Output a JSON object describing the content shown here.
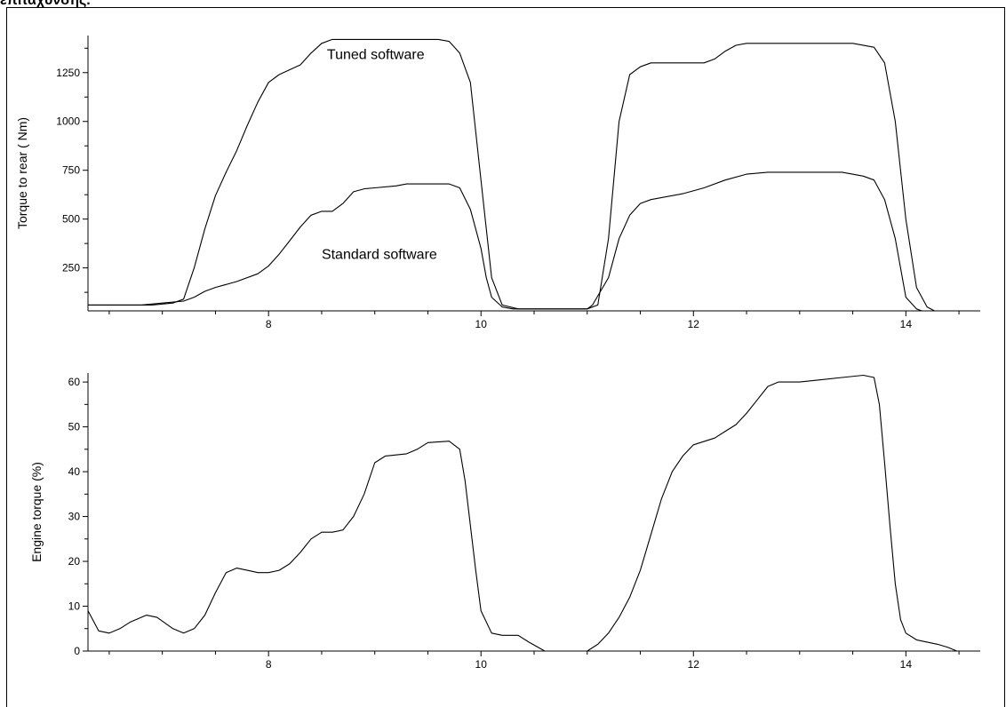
{
  "page": {
    "heading": "επιτάχυνσης."
  },
  "colors": {
    "line": "#000000",
    "axis": "#000000",
    "background": "#ffffff"
  },
  "chart_data": [
    {
      "type": "line",
      "title": "",
      "xlabel": "",
      "ylabel": "Torque to rear ( Nm)",
      "xlim": [
        6.3,
        14.7
      ],
      "ylim": [
        30,
        1440
      ],
      "x_ticks": [
        8,
        10,
        12,
        14
      ],
      "y_ticks": [
        250,
        500,
        750,
        1000,
        1250
      ],
      "grid": false,
      "legend": "none",
      "series": [
        {
          "name": "Tuned software",
          "label_at": [
            8.55,
            1320
          ],
          "points": [
            [
              6.3,
              60
            ],
            [
              6.9,
              60
            ],
            [
              7.1,
              70
            ],
            [
              7.2,
              90
            ],
            [
              7.3,
              250
            ],
            [
              7.4,
              450
            ],
            [
              7.5,
              620
            ],
            [
              7.6,
              740
            ],
            [
              7.7,
              850
            ],
            [
              7.8,
              980
            ],
            [
              7.9,
              1100
            ],
            [
              8.0,
              1200
            ],
            [
              8.1,
              1240
            ],
            [
              8.3,
              1290
            ],
            [
              8.4,
              1350
            ],
            [
              8.5,
              1400
            ],
            [
              8.6,
              1420
            ],
            [
              9.0,
              1420
            ],
            [
              9.3,
              1420
            ],
            [
              9.6,
              1420
            ],
            [
              9.7,
              1410
            ],
            [
              9.8,
              1350
            ],
            [
              9.9,
              1200
            ],
            [
              10.0,
              700
            ],
            [
              10.1,
              200
            ],
            [
              10.2,
              60
            ],
            [
              10.35,
              40
            ],
            [
              11.0,
              40
            ],
            [
              11.1,
              60
            ],
            [
              11.2,
              400
            ],
            [
              11.3,
              1000
            ],
            [
              11.4,
              1240
            ],
            [
              11.5,
              1280
            ],
            [
              11.6,
              1300
            ],
            [
              12.1,
              1300
            ],
            [
              12.2,
              1320
            ],
            [
              12.3,
              1360
            ],
            [
              12.4,
              1390
            ],
            [
              12.5,
              1400
            ],
            [
              13.5,
              1400
            ],
            [
              13.7,
              1380
            ],
            [
              13.8,
              1300
            ],
            [
              13.9,
              1000
            ],
            [
              14.0,
              500
            ],
            [
              14.1,
              150
            ],
            [
              14.2,
              50
            ],
            [
              14.27,
              30
            ]
          ]
        },
        {
          "name": "Standard software",
          "label_at": [
            8.5,
            295
          ],
          "points": [
            [
              6.3,
              60
            ],
            [
              6.8,
              60
            ],
            [
              7.0,
              70
            ],
            [
              7.2,
              80
            ],
            [
              7.3,
              100
            ],
            [
              7.4,
              130
            ],
            [
              7.5,
              150
            ],
            [
              7.7,
              180
            ],
            [
              7.9,
              220
            ],
            [
              8.0,
              260
            ],
            [
              8.1,
              320
            ],
            [
              8.2,
              390
            ],
            [
              8.3,
              460
            ],
            [
              8.4,
              520
            ],
            [
              8.5,
              540
            ],
            [
              8.6,
              540
            ],
            [
              8.7,
              580
            ],
            [
              8.8,
              640
            ],
            [
              8.9,
              655
            ],
            [
              9.0,
              660
            ],
            [
              9.2,
              670
            ],
            [
              9.3,
              680
            ],
            [
              9.7,
              680
            ],
            [
              9.8,
              660
            ],
            [
              9.9,
              550
            ],
            [
              10.0,
              350
            ],
            [
              10.05,
              200
            ],
            [
              10.1,
              100
            ],
            [
              10.2,
              50
            ],
            [
              10.3,
              40
            ],
            [
              11.0,
              40
            ],
            [
              11.05,
              60
            ],
            [
              11.2,
              200
            ],
            [
              11.3,
              400
            ],
            [
              11.4,
              520
            ],
            [
              11.5,
              580
            ],
            [
              11.6,
              600
            ],
            [
              11.9,
              630
            ],
            [
              12.1,
              660
            ],
            [
              12.3,
              700
            ],
            [
              12.5,
              730
            ],
            [
              12.7,
              740
            ],
            [
              13.4,
              740
            ],
            [
              13.6,
              720
            ],
            [
              13.7,
              700
            ],
            [
              13.8,
              600
            ],
            [
              13.9,
              400
            ],
            [
              14.0,
              100
            ],
            [
              14.1,
              40
            ],
            [
              14.15,
              30
            ]
          ]
        }
      ]
    },
    {
      "type": "line",
      "title": "",
      "xlabel": "",
      "ylabel": "Engine torque (%)",
      "xlim": [
        6.3,
        14.7
      ],
      "ylim": [
        0,
        62
      ],
      "x_ticks": [
        8,
        10,
        12,
        14
      ],
      "y_ticks": [
        0,
        10,
        20,
        30,
        40,
        50,
        60
      ],
      "grid": false,
      "legend": "none",
      "series": [
        {
          "name": "",
          "points": [
            [
              6.3,
              9
            ],
            [
              6.4,
              4.5
            ],
            [
              6.5,
              4
            ],
            [
              6.6,
              5
            ],
            [
              6.7,
              6.5
            ],
            [
              6.85,
              8
            ],
            [
              6.95,
              7.5
            ],
            [
              7.1,
              5
            ],
            [
              7.2,
              4
            ],
            [
              7.3,
              5
            ],
            [
              7.4,
              8
            ],
            [
              7.5,
              13
            ],
            [
              7.6,
              17.5
            ],
            [
              7.7,
              18.5
            ],
            [
              7.8,
              18
            ],
            [
              7.9,
              17.5
            ],
            [
              8.0,
              17.5
            ],
            [
              8.1,
              18
            ],
            [
              8.2,
              19.5
            ],
            [
              8.3,
              22
            ],
            [
              8.4,
              25
            ],
            [
              8.5,
              26.5
            ],
            [
              8.6,
              26.5
            ],
            [
              8.7,
              27
            ],
            [
              8.8,
              30
            ],
            [
              8.9,
              35
            ],
            [
              9.0,
              42
            ],
            [
              9.1,
              43.5
            ],
            [
              9.3,
              44
            ],
            [
              9.4,
              45
            ],
            [
              9.5,
              46.5
            ],
            [
              9.7,
              46.8
            ],
            [
              9.8,
              45
            ],
            [
              9.85,
              38
            ],
            [
              9.9,
              28
            ],
            [
              9.95,
              18
            ],
            [
              10.0,
              9
            ],
            [
              10.1,
              4
            ],
            [
              10.2,
              3.5
            ],
            [
              10.35,
              3.5
            ],
            [
              10.45,
              2
            ],
            [
              10.6,
              0
            ],
            [
              10.62,
              0
            ]
          ],
          "gap_after": 42
        },
        {
          "name": "",
          "points": [
            [
              11.0,
              0
            ],
            [
              11.1,
              1.5
            ],
            [
              11.2,
              4
            ],
            [
              11.3,
              7.5
            ],
            [
              11.4,
              12
            ],
            [
              11.5,
              18
            ],
            [
              11.6,
              26
            ],
            [
              11.7,
              34
            ],
            [
              11.8,
              40
            ],
            [
              11.9,
              43.5
            ],
            [
              12.0,
              46
            ],
            [
              12.2,
              47.5
            ],
            [
              12.3,
              49
            ],
            [
              12.4,
              50.5
            ],
            [
              12.5,
              53
            ],
            [
              12.6,
              56
            ],
            [
              12.7,
              59
            ],
            [
              12.8,
              60
            ],
            [
              13.0,
              60
            ],
            [
              13.2,
              60.5
            ],
            [
              13.4,
              61
            ],
            [
              13.6,
              61.5
            ],
            [
              13.7,
              61
            ],
            [
              13.75,
              55
            ],
            [
              13.8,
              42
            ],
            [
              13.85,
              28
            ],
            [
              13.9,
              15
            ],
            [
              13.95,
              7
            ],
            [
              14.0,
              4
            ],
            [
              14.1,
              2.5
            ],
            [
              14.2,
              2
            ],
            [
              14.3,
              1.5
            ],
            [
              14.4,
              0.8
            ],
            [
              14.48,
              0
            ]
          ]
        }
      ]
    }
  ]
}
